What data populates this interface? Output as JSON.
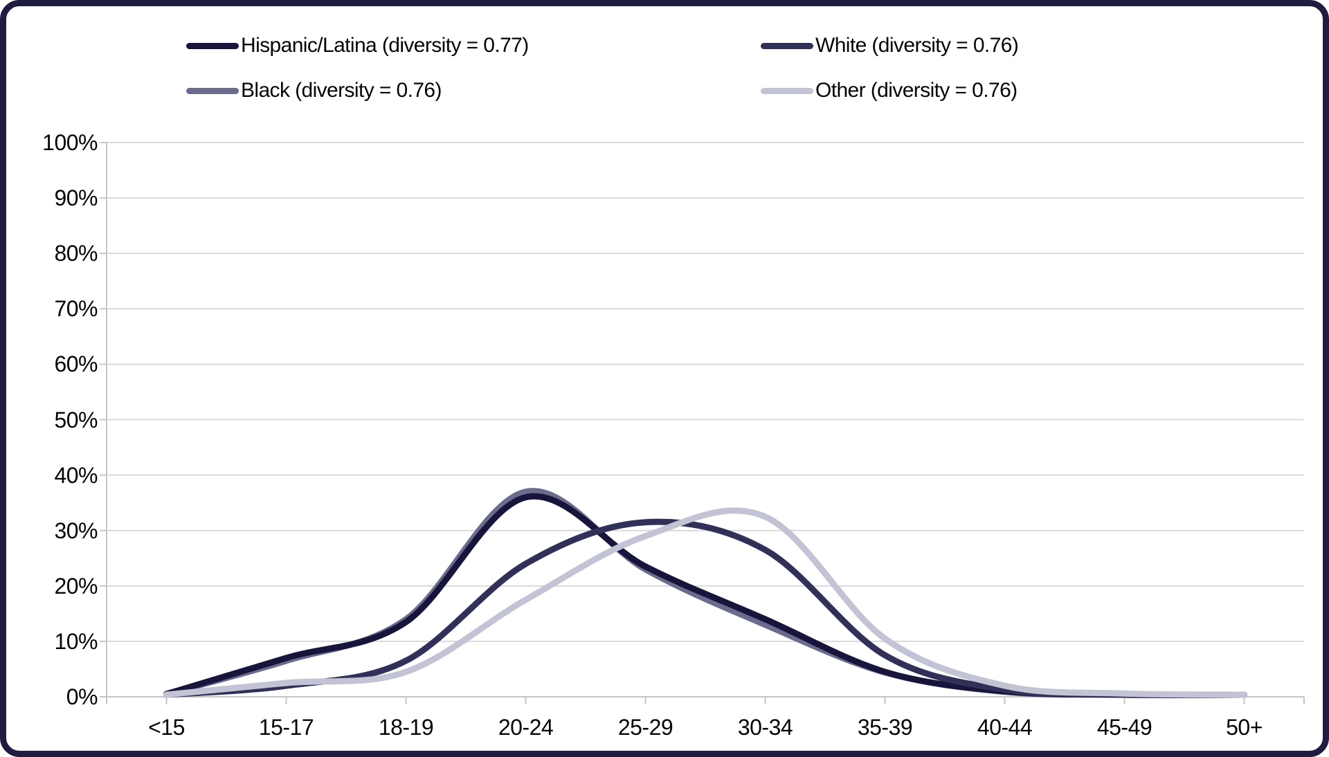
{
  "frame": {
    "border_color": "#1E1D41",
    "background": "#ffffff"
  },
  "legend": {
    "position": "top",
    "columns": 2
  },
  "chart_data": {
    "type": "line",
    "smoothed": true,
    "title": "",
    "xlabel": "",
    "ylabel": "",
    "ylim": [
      0,
      100
    ],
    "grid": true,
    "gridline_color": "#D9D9D9",
    "axis_color": "#C6C6C6",
    "legend_position": "top",
    "categories": [
      "<15",
      "15-17",
      "18-19",
      "20-24",
      "25-29",
      "30-34",
      "35-39",
      "40-44",
      "45-49",
      "50+"
    ],
    "y_ticks": [
      "0%",
      "10%",
      "20%",
      "30%",
      "40%",
      "50%",
      "60%",
      "70%",
      "80%",
      "90%",
      "100%"
    ],
    "series": [
      {
        "name": "Hispanic/Latina",
        "diversity": 0.77,
        "legend_label": "Hispanic/Latina (diversity = 0.77)",
        "color": "#18153C",
        "values": [
          0.5,
          7.0,
          13.5,
          36.0,
          23.5,
          14.0,
          4.5,
          1.0,
          0.3,
          0.2
        ]
      },
      {
        "name": "White",
        "diversity": 0.76,
        "legend_label": "White (diversity = 0.76)",
        "color": "#303059",
        "values": [
          0.3,
          2.0,
          6.5,
          24.0,
          31.5,
          26.5,
          7.5,
          1.3,
          0.4,
          0.2
        ]
      },
      {
        "name": "Black",
        "diversity": 0.76,
        "legend_label": "Black (diversity = 0.76)",
        "color": "#6B6B8E",
        "values": [
          0.5,
          6.5,
          14.0,
          37.0,
          23.0,
          13.0,
          4.4,
          0.9,
          0.3,
          0.2
        ]
      },
      {
        "name": "Other",
        "diversity": 0.76,
        "legend_label": "Other (diversity = 0.76)",
        "color": "#C3C3D6",
        "values": [
          0.3,
          2.5,
          4.5,
          17.5,
          29.0,
          32.5,
          10.5,
          2.0,
          0.6,
          0.3
        ]
      }
    ],
    "draw_order": [
      2,
      0,
      1,
      3
    ],
    "line_width": 9
  }
}
